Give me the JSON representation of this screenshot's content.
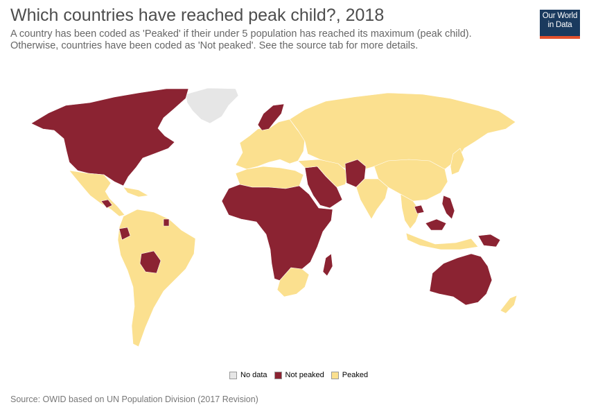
{
  "header": {
    "title": "Which countries have reached peak child?, 2018",
    "subtitle": "A country has been coded as 'Peaked' if their under 5 population has reached its maximum (peak child). Otherwise, countries have been coded as 'Not peaked'. See the source tab for more details."
  },
  "logo": {
    "line1": "Our World",
    "line2": "in Data"
  },
  "colors": {
    "no_data": "#e6e6e6",
    "not_peaked": "#8b2332",
    "peaked": "#fbe08f",
    "border": "#ffffff",
    "ocean": "#ffffff"
  },
  "legend": [
    {
      "label": "No data",
      "color": "#e6e6e6"
    },
    {
      "label": "Not peaked",
      "color": "#8b2332"
    },
    {
      "label": "Peaked",
      "color": "#fbe08f"
    }
  ],
  "map": {
    "regions": [
      {
        "name": "North America (Canada, USA)",
        "status": "not_peaked"
      },
      {
        "name": "Greenland",
        "status": "no_data"
      },
      {
        "name": "Mexico & Central America",
        "status": "peaked"
      },
      {
        "name": "Guatemala",
        "status": "not_peaked"
      },
      {
        "name": "Caribbean",
        "status": "peaked"
      },
      {
        "name": "South America",
        "status": "peaked"
      },
      {
        "name": "Bolivia",
        "status": "not_peaked"
      },
      {
        "name": "Ecuador",
        "status": "not_peaked"
      },
      {
        "name": "French Guiana",
        "status": "not_peaked"
      },
      {
        "name": "Europe",
        "status": "peaked"
      },
      {
        "name": "Norway & Sweden",
        "status": "not_peaked"
      },
      {
        "name": "Russia & Central Asia",
        "status": "peaked"
      },
      {
        "name": "Middle East (Saudi Arabia, Iraq, Yemen, Oman)",
        "status": "not_peaked"
      },
      {
        "name": "Pakistan & Afghanistan",
        "status": "not_peaked"
      },
      {
        "name": "North Africa",
        "status": "peaked"
      },
      {
        "name": "Sub-Saharan Africa",
        "status": "not_peaked"
      },
      {
        "name": "Southern Africa",
        "status": "peaked"
      },
      {
        "name": "Madagascar",
        "status": "not_peaked"
      },
      {
        "name": "India & South Asia",
        "status": "peaked"
      },
      {
        "name": "China, Mongolia, Korea, Japan",
        "status": "peaked"
      },
      {
        "name": "Southeast Asia",
        "status": "peaked"
      },
      {
        "name": "Cambodia",
        "status": "not_peaked"
      },
      {
        "name": "Philippines",
        "status": "not_peaked"
      },
      {
        "name": "Malaysia (Borneo)",
        "status": "not_peaked"
      },
      {
        "name": "Indonesia",
        "status": "peaked"
      },
      {
        "name": "Papua New Guinea",
        "status": "not_peaked"
      },
      {
        "name": "Australia",
        "status": "not_peaked"
      },
      {
        "name": "New Zealand",
        "status": "peaked"
      }
    ]
  },
  "footer": {
    "source": "Source: OWID based on UN Population Division (2017 Revision)"
  }
}
